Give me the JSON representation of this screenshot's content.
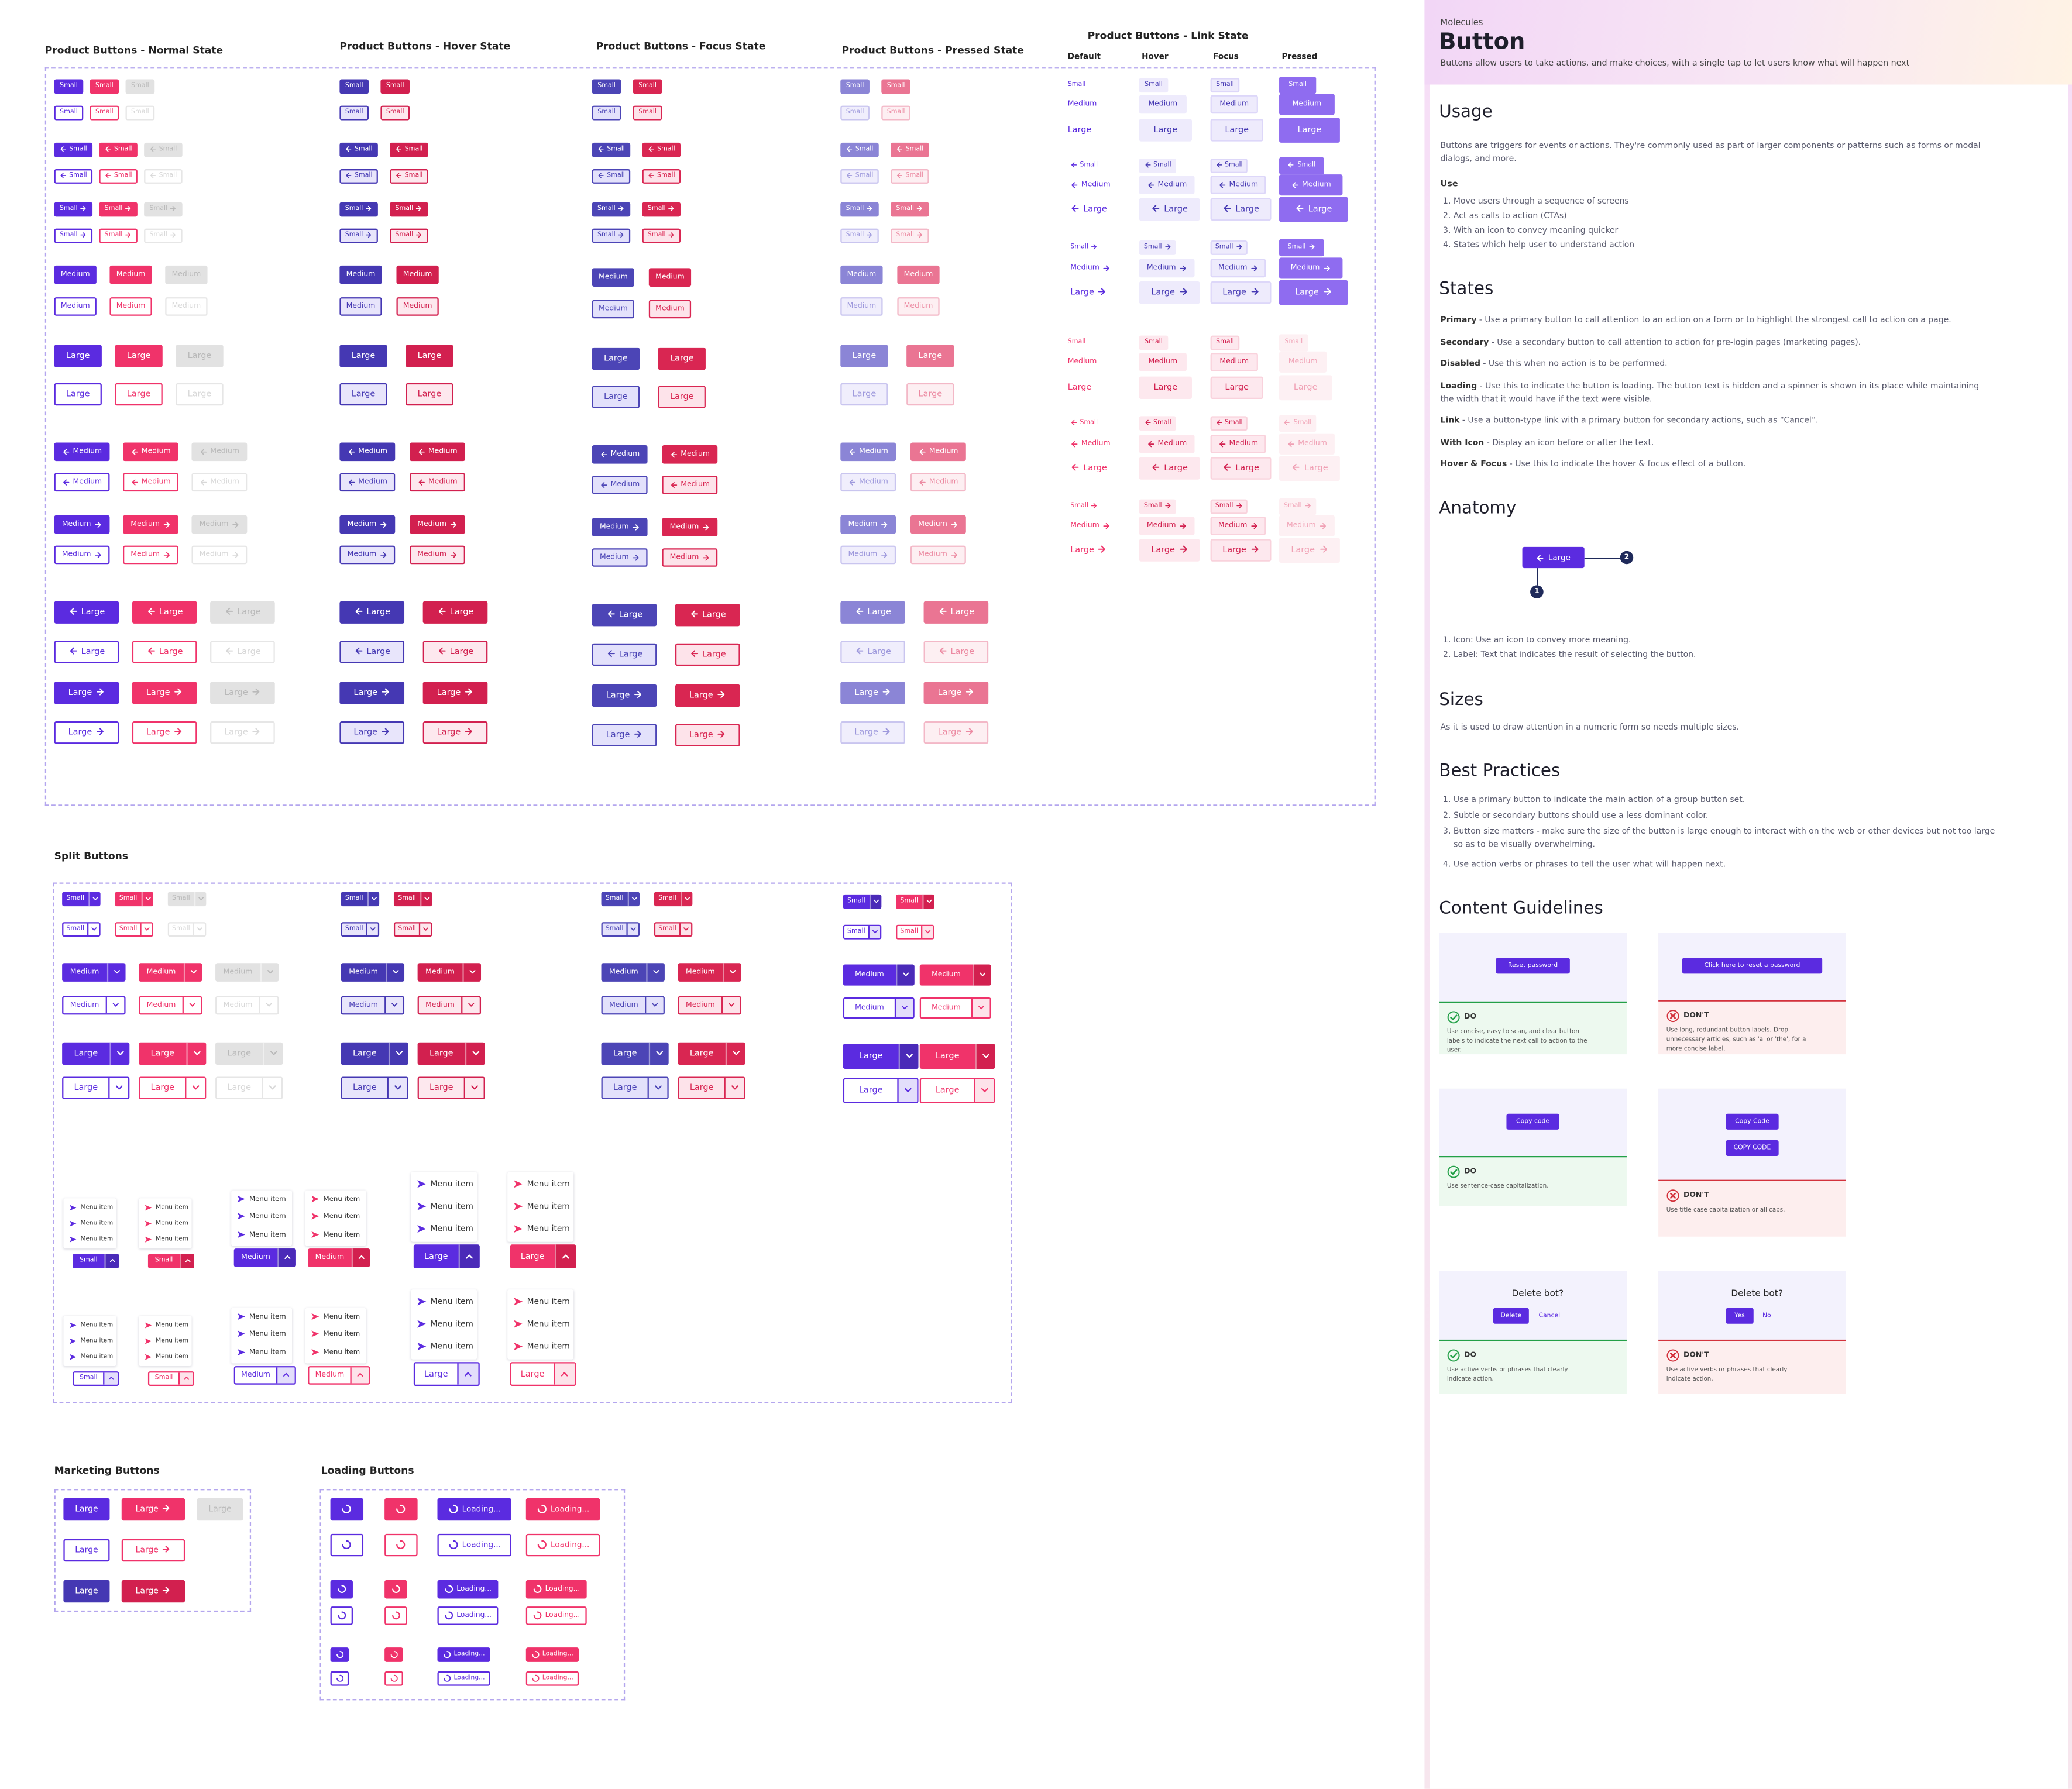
{
  "product_buttons": {
    "titles": [
      "Product Buttons - Normal State",
      "Product Buttons - Hover State",
      "Product Buttons - Focus State",
      "Product Buttons - Pressed State"
    ],
    "rows": [
      "Small",
      "Small",
      "Small",
      "Small",
      "Small",
      "Small",
      "Medium",
      "Medium",
      "Large",
      "Large",
      "Medium",
      "Medium",
      "Medium",
      "Medium",
      "Large",
      "Large",
      "Large",
      "Large"
    ]
  },
  "link_state": {
    "title": "Product Buttons - Link State",
    "columns": [
      "Default",
      "Hover",
      "Focus",
      "Pressed"
    ],
    "rows": [
      "Small",
      "Medium",
      "Large",
      "Small",
      "Medium",
      "Large",
      "Small",
      "Medium",
      "Large",
      "Small",
      "Medium",
      "Large",
      "Small",
      "Medium",
      "Large",
      "Small",
      "Medium",
      "Large"
    ]
  },
  "split_buttons": {
    "title": "Split Buttons",
    "rows": [
      "Small",
      "Small",
      "Medium",
      "Medium",
      "Large",
      "Large"
    ],
    "menu_items": [
      "Menu item",
      "Menu item",
      "Menu item"
    ],
    "menu_buttons": [
      "Small",
      "Small",
      "Medium",
      "Medium",
      "Large",
      "Large"
    ]
  },
  "marketing_buttons": {
    "title": "Marketing Buttons",
    "label": "Large"
  },
  "loading_buttons": {
    "title": "Loading Buttons",
    "label": "Loading..."
  },
  "doc": {
    "eyebrow": "Molecules",
    "title": "Button",
    "description": "Buttons allow users to take actions, and make choices, with a single tap to let users know what will happen next",
    "usage": {
      "heading": "Usage",
      "text": "Buttons are triggers for events or actions. They're commonly used as part of larger components or patterns such as forms or modal dialogs, and more.",
      "subheading": "Use",
      "items": [
        "1. Move users through a sequence of screens",
        "2. Act as calls to action (CTAs)",
        "3. With an icon to convey meaning quicker",
        "4. States which help user to understand action"
      ]
    },
    "states": {
      "heading": "States",
      "items": [
        {
          "term": "Primary",
          "text": " - Use a primary button to call attention to an action on a form or to highlight the strongest call to action on a page."
        },
        {
          "term": "Secondary",
          "text": " - Use a secondary button to call attention to action for pre-login pages (marketing pages)."
        },
        {
          "term": "Disabled",
          "text": " - Use this when no action is to be performed."
        },
        {
          "term": "Loading",
          "text": " - Use this to indicate the button is loading. The button text is hidden and a spinner is shown in its place while maintaining the width that it would have if the text were visible."
        },
        {
          "term": "Link",
          "text": " - Use a button-type link with a primary button for secondary actions, such as “Cancel”."
        },
        {
          "term": "With Icon",
          "text": " - Display an icon before or after the text."
        },
        {
          "term": "Hover & Focus",
          "text": " - Use this to indicate the hover & focus effect of a button."
        }
      ]
    },
    "anatomy": {
      "heading": "Anatomy",
      "button": "Large",
      "markers": [
        "1",
        "2"
      ],
      "items": [
        "1. Icon: Use an icon to convey more meaning.",
        "2. Label: Text that indicates the result of selecting the button."
      ]
    },
    "sizes": {
      "heading": "Sizes",
      "text": "As it is used to draw attention in a numeric form so needs multiple sizes."
    },
    "best_practices": {
      "heading": "Best Practices",
      "items": [
        "1. Use a primary button to indicate the main action of a group button set.",
        "2. Subtle or secondary buttons should use a less dominant color.",
        "3. Button size matters - make sure the size of the button is large enough to interact with on the web or other devices but not too large so as to be visually overwhelming.",
        "4. Use action verbs or phrases to tell the user what will happen next."
      ]
    },
    "guidelines": {
      "heading": "Content Guidelines",
      "cards": [
        {
          "buttons": [
            "Reset password"
          ],
          "verdict": "DO",
          "note": "Use concise, easy to scan, and clear button labels to indicate the next call to action to the user."
        },
        {
          "buttons": [
            "Click here to reset a password"
          ],
          "verdict": "DON'T",
          "note": "Use long, redundant button labels. Drop unnecessary articles, such as 'a' or 'the', for a more concise label."
        },
        {
          "buttons": [
            "Copy code"
          ],
          "verdict": "DO",
          "note": "Use sentence-case capitalization."
        },
        {
          "buttons": [
            "Copy Code",
            "COPY CODE"
          ],
          "verdict": "DON'T",
          "note": "Use title case capitalization or all caps."
        },
        {
          "heading": "Delete bot?",
          "buttons": [
            "Delete",
            "Cancel"
          ],
          "verdict": "DO",
          "note": "Use active verbs or phrases that clearly indicate action."
        },
        {
          "heading": "Delete bot?",
          "buttons": [
            "Yes",
            "No"
          ],
          "verdict": "DON'T",
          "note": "Use active verbs or phrases that clearly indicate action."
        }
      ]
    }
  }
}
